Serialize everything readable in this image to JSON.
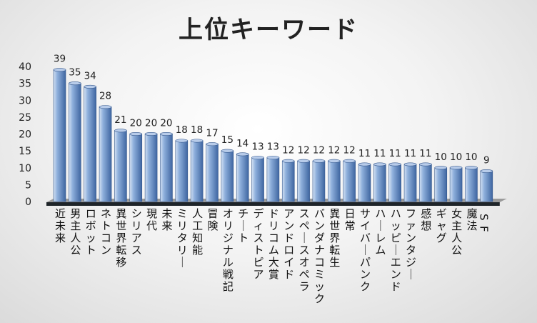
{
  "chart_data": {
    "type": "bar",
    "title": "上位キーワード",
    "xlabel": "",
    "ylabel": "",
    "ylim": [
      0,
      40
    ],
    "yticks": [
      0,
      5,
      10,
      15,
      20,
      25,
      30,
      35,
      40
    ],
    "grid": false,
    "legend": "none",
    "style": "3d-cylinder-bars",
    "colors": {
      "bar_light": "#d3e1f3",
      "bar_mid": "#8fb0dc",
      "bar_dark": "#3f66a1",
      "bar_top": "#b8ccea",
      "floor": "#1e2429",
      "axis": "#9a9a9a"
    },
    "categories": [
      "近未来",
      "男主人公",
      "ロボット",
      "ネトコン",
      "異世界転移",
      "シリアス",
      "現代",
      "未来",
      "ミリタリー",
      "人工知能",
      "冒険",
      "オリジナル戦記",
      "チート",
      "ディストピア",
      "ドリコム大賞",
      "アンドロイド",
      "スペースオペラ",
      "バンダナコミック",
      "異世界転生",
      "日常",
      "サイバーパンク",
      "ハーレム",
      "ハッピーエンド",
      "ファンタジー",
      "感想",
      "ギャグ",
      "女主人公",
      "魔法",
      "SF"
    ],
    "values": [
      39,
      35,
      34,
      28,
      21,
      20,
      20,
      20,
      18,
      18,
      17,
      15,
      14,
      13,
      13,
      12,
      12,
      12,
      12,
      12,
      11,
      11,
      11,
      11,
      11,
      10,
      10,
      10,
      9
    ]
  }
}
